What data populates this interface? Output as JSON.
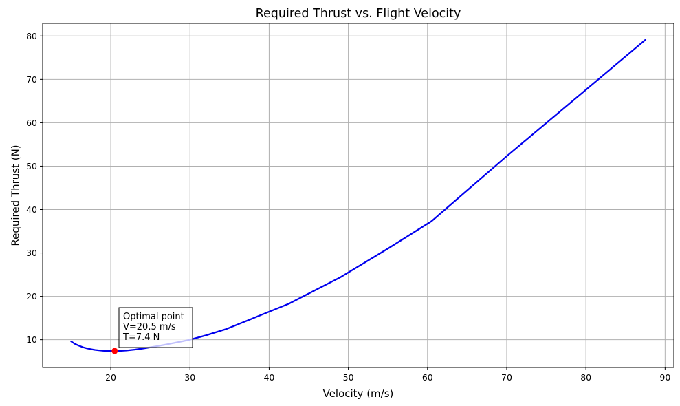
{
  "chart_data": {
    "type": "line",
    "title": "Required Thrust vs. Flight Velocity",
    "xlabel": "Velocity (m/s)",
    "ylabel": "Required Thrust (N)",
    "xlim": [
      11.4,
      91.1
    ],
    "ylim": [
      3.6,
      82.9
    ],
    "xticks": [
      20,
      30,
      40,
      50,
      60,
      70,
      80,
      90
    ],
    "yticks": [
      10,
      20,
      30,
      40,
      50,
      60,
      70,
      80
    ],
    "grid": true,
    "series": [
      {
        "color": "#0000ee",
        "x": [
          15.0,
          15.5,
          16.0,
          16.5,
          17.0,
          17.5,
          18.0,
          18.5,
          19.0,
          19.5,
          20.0,
          20.5,
          21.0,
          22.0,
          23.0,
          24.0,
          25.0,
          26.0,
          27.0,
          28.0,
          29.0,
          30.0,
          32.0,
          34.5,
          37.5,
          42.5,
          49.0,
          55.0,
          60.5,
          70.0,
          80.0,
          87.5
        ],
        "y": [
          9.6,
          9.0,
          8.6,
          8.25,
          8.0,
          7.8,
          7.65,
          7.55,
          7.45,
          7.4,
          7.38,
          7.38,
          7.4,
          7.5,
          7.7,
          7.95,
          8.25,
          8.55,
          8.9,
          9.25,
          9.6,
          10.0,
          11.0,
          12.4,
          14.6,
          18.3,
          24.4,
          31.0,
          37.3,
          52.3,
          67.6,
          79.1
        ]
      }
    ],
    "optimal_point": {
      "x": 20.5,
      "y": 7.4,
      "color": "#ff0000",
      "label_lines": [
        "Optimal point",
        "V=20.5 m/s",
        "T=7.4 N"
      ]
    }
  }
}
